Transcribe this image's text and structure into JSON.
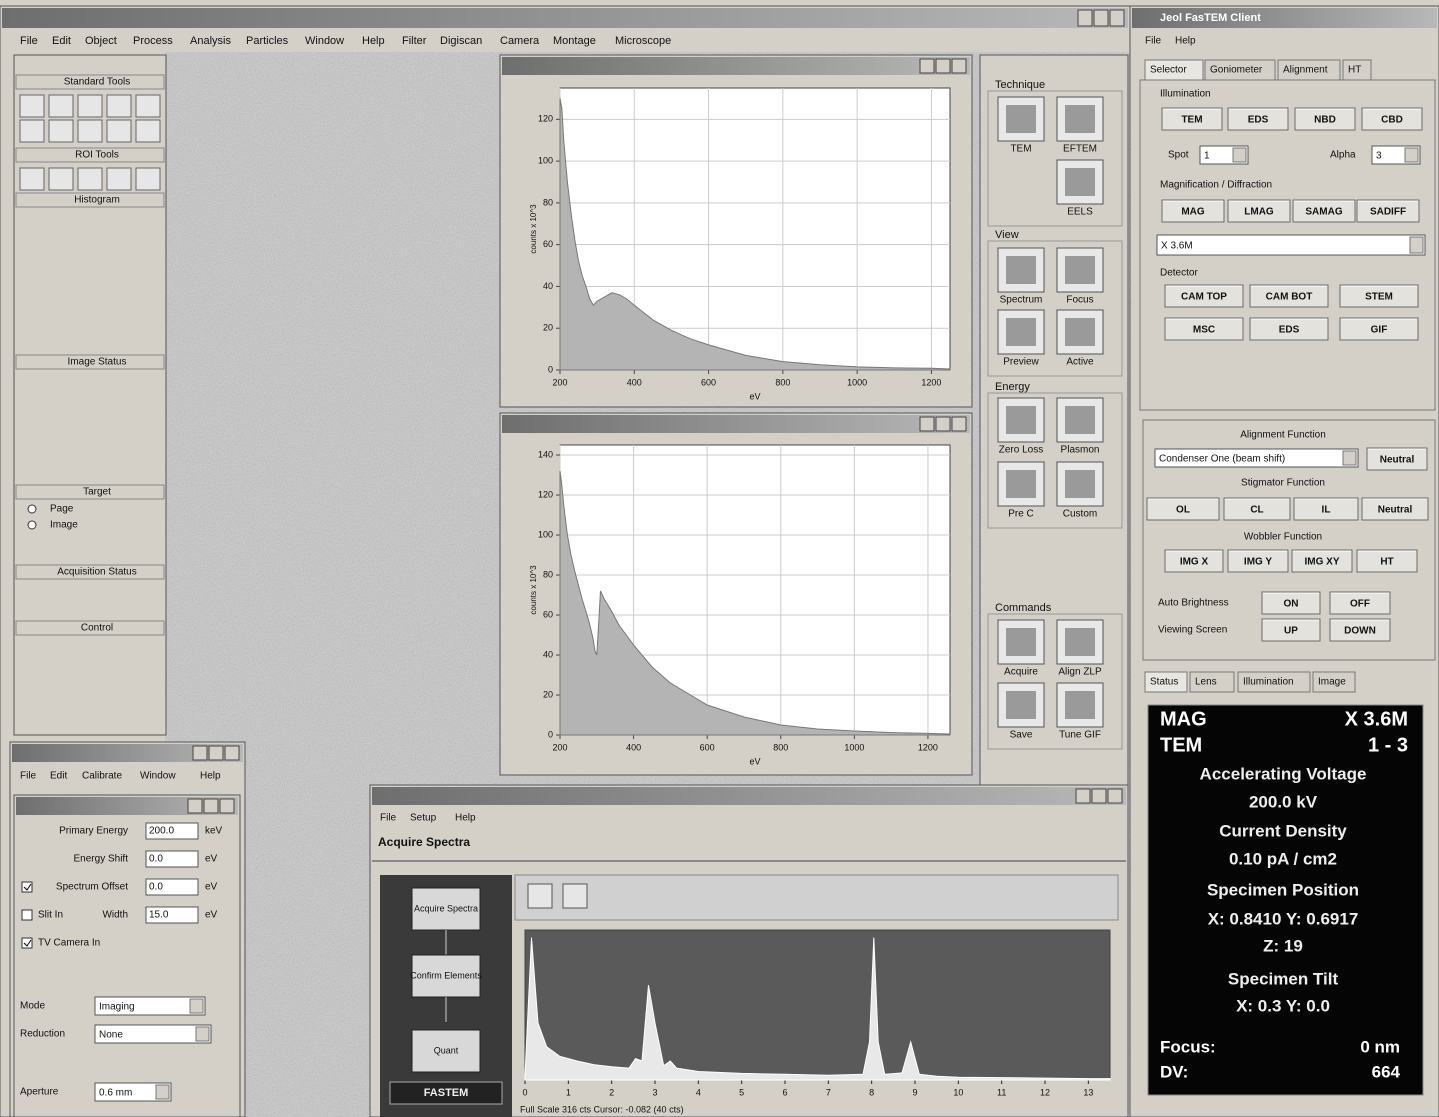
{
  "main_window": {
    "menu": [
      "File",
      "Edit",
      "Object",
      "Process",
      "Analysis",
      "Particles",
      "Window",
      "Help",
      "Filter",
      "Digiscan",
      "Camera",
      "Montage",
      "Microscope"
    ]
  },
  "tools": {
    "sections": [
      "Standard Tools",
      "ROI Tools",
      "Histogram",
      "Image Status",
      "Target",
      "Acquisition Status",
      "Control"
    ],
    "target_options": [
      "Page",
      "Image"
    ]
  },
  "chart_data": [
    {
      "type": "area",
      "y_label": "counts x 10^3",
      "x_label": "eV",
      "color": "#b4b4b4",
      "grid": true,
      "x": [
        200,
        205,
        210,
        220,
        230,
        240,
        250,
        260,
        270,
        280,
        290,
        300,
        320,
        340,
        360,
        380,
        400,
        450,
        500,
        550,
        600,
        700,
        800,
        900,
        1000,
        1100,
        1200,
        1250
      ],
      "values": [
        130,
        125,
        110,
        90,
        75,
        62,
        52,
        45,
        40,
        34,
        31,
        33,
        35,
        37,
        36,
        34,
        31,
        24,
        19,
        15,
        12,
        7,
        4,
        2.5,
        1.5,
        1,
        0.8,
        0.5
      ],
      "xlim": [
        200,
        1250
      ],
      "ylim": [
        0,
        135
      ],
      "xticks": [
        200,
        400,
        600,
        800,
        1000,
        1200
      ],
      "yticks": [
        0,
        20,
        40,
        60,
        80,
        100,
        120
      ]
    },
    {
      "type": "area",
      "y_label": "counts x 10^3",
      "x_label": "eV",
      "color": "#b4b4b4",
      "grid": true,
      "x": [
        200,
        205,
        210,
        220,
        230,
        240,
        250,
        260,
        270,
        280,
        290,
        295,
        300,
        305,
        310,
        320,
        340,
        360,
        400,
        450,
        500,
        600,
        700,
        800,
        900,
        1000,
        1100,
        1200,
        1260
      ],
      "values": [
        132,
        125,
        115,
        100,
        90,
        82,
        75,
        68,
        62,
        56,
        48,
        42,
        40,
        55,
        72,
        68,
        62,
        55,
        45,
        34,
        26,
        15,
        9,
        5,
        3,
        2,
        1.2,
        0.8,
        0.5
      ],
      "xlim": [
        200,
        1260
      ],
      "ylim": [
        0,
        145
      ],
      "xticks": [
        200,
        400,
        600,
        800,
        1000,
        1200
      ],
      "yticks": [
        0,
        20,
        40,
        60,
        80,
        100,
        120,
        140
      ]
    },
    {
      "type": "area",
      "color": "#e8e8e8",
      "grid": false,
      "x": [
        0,
        0.15,
        0.3,
        0.5,
        0.8,
        1.0,
        1.2,
        1.6,
        2.0,
        2.4,
        2.55,
        2.7,
        2.85,
        3.0,
        3.2,
        3.35,
        3.5,
        4,
        5,
        6,
        7,
        7.8,
        7.95,
        8.05,
        8.15,
        8.3,
        8.7,
        8.9,
        9.1,
        9.5,
        10,
        11,
        12,
        13,
        13.5
      ],
      "values": [
        10,
        300,
        120,
        70,
        50,
        45,
        40,
        32,
        28,
        25,
        45,
        40,
        200,
        120,
        30,
        40,
        25,
        18,
        14,
        12,
        10,
        12,
        80,
        300,
        80,
        12,
        15,
        80,
        12,
        8,
        6,
        5,
        4,
        3,
        3
      ],
      "xlim": [
        0,
        13.5
      ],
      "ylim": [
        0,
        316
      ],
      "xticks": [
        0,
        1,
        2,
        3,
        4,
        5,
        6,
        7,
        8,
        9,
        10,
        11,
        12,
        13
      ],
      "yticks": []
    }
  ],
  "technique": {
    "technique_label": "Technique",
    "technique": [
      "TEM",
      "EFTEM",
      "EELS"
    ],
    "view_label": "View",
    "view": [
      "Spectrum",
      "Focus",
      "Preview",
      "Active"
    ],
    "energy_label": "Energy",
    "energy": [
      "Zero Loss",
      "Plasmon",
      "Pre C",
      "Custom"
    ],
    "commands_label": "Commands",
    "commands": [
      "Acquire",
      "Align ZLP",
      "Save",
      "Tune GIF"
    ]
  },
  "filter_window": {
    "menu": [
      "File",
      "Edit",
      "Calibrate",
      "Window",
      "Help"
    ],
    "fields": [
      {
        "label": "Primary Energy",
        "value": "200.0",
        "unit": "keV"
      },
      {
        "label": "Energy Shift",
        "value": "0.0",
        "unit": "eV"
      },
      {
        "label": "Spectrum Offset",
        "value": "0.0",
        "unit": "eV"
      },
      {
        "label": "Width",
        "value": "15.0",
        "unit": "eV"
      }
    ],
    "slit_in": "Slit In",
    "tv_camera": "TV Camera In",
    "selects": [
      {
        "label": "Mode",
        "value": "Imaging"
      },
      {
        "label": "Reduction",
        "value": "None"
      },
      {
        "label": "Aperture",
        "value": "0.6 mm"
      }
    ]
  },
  "eds_window": {
    "menu": [
      "File",
      "Setup",
      "Help"
    ],
    "heading": "Acquire Spectra",
    "steps": [
      "Acquire Spectra",
      "Confirm Elements",
      "Quant"
    ],
    "logo": "FASTEM",
    "status": "Full Scale 316 cts Cursor: -0.082 (40 cts)"
  },
  "client": {
    "title": "Jeol FasTEM Client",
    "menu": [
      "File",
      "Help"
    ],
    "tabs": [
      "Selector",
      "Goniometer",
      "Alignment",
      "HT"
    ],
    "illumination_label": "Illumination",
    "illumination": [
      "TEM",
      "EDS",
      "NBD",
      "CBD"
    ],
    "spot_label": "Spot",
    "spot": "1",
    "alpha_label": "Alpha",
    "alpha": "3",
    "mag_label": "Magnification / Diffraction",
    "mag": [
      "MAG",
      "LMAG",
      "SAMAG",
      "SADIFF"
    ],
    "mag_value": "X 3.6M",
    "detector_label": "Detector",
    "detectors": [
      "CAM TOP",
      "CAM BOT",
      "STEM",
      "MSC",
      "EDS",
      "GIF"
    ],
    "alignment_label": "Alignment Function",
    "alignment_value": "Condenser One (beam shift)",
    "alignment_neutral": "Neutral",
    "stigmator_label": "Stigmator Function",
    "stigmator": [
      "OL",
      "CL",
      "IL",
      "Neutral"
    ],
    "wobbler_label": "Wobbler Function",
    "wobbler": [
      "IMG X",
      "IMG Y",
      "IMG XY",
      "HT"
    ],
    "auto_brightness": "Auto Brightness",
    "brightness": [
      "ON",
      "OFF"
    ],
    "viewing_screen": "Viewing Screen",
    "screen": [
      "UP",
      "DOWN"
    ],
    "status_tabs": [
      "Status",
      "Lens",
      "Illumination",
      "Image"
    ],
    "status_rows": [
      [
        "MAG",
        "X 3.6M"
      ],
      [
        "TEM",
        "1 - 3"
      ]
    ],
    "status_lines": [
      "Accelerating Voltage",
      "200.0 kV",
      "Current Density",
      "0.10 pA / cm2",
      "Specimen Position",
      "X: 0.8410 Y: 0.6917",
      "Z: 19",
      "Specimen Tilt",
      "X: 0.3 Y: 0.0"
    ],
    "status_bottom": [
      [
        "Focus:",
        "0 nm"
      ],
      [
        "DV:",
        "664"
      ]
    ]
  }
}
